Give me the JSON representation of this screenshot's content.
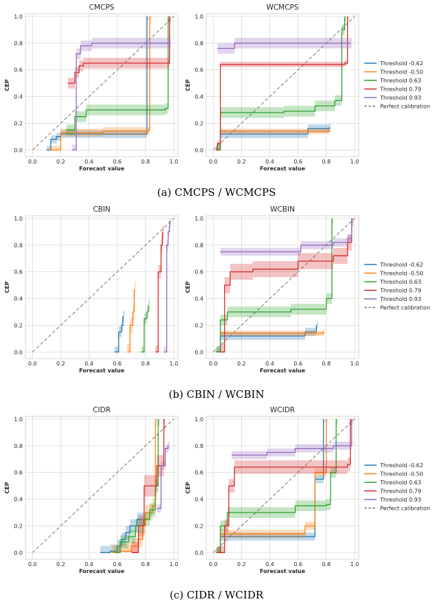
{
  "colors": {
    "Threshold -0.62": "#1f77b4",
    "Threshold -0.50": "#ff7f0e",
    "Threshold 0.63": "#2ca02c",
    "Threshold 0.79": "#d62728",
    "Threshold 0.93": "#9467bd",
    "perfect": "#7f7f7f",
    "grid": "#d9d9d9"
  },
  "legend": {
    "entries": [
      "Threshold -0.62",
      "Threshold -0.50",
      "Threshold 0.63",
      "Threshold 0.79",
      "Threshold 0.93",
      "Perfect calibration"
    ],
    "placement": "right"
  },
  "captions": [
    "(a) CMCPS / WCMCPS",
    "(b) CBIN / WCBIN",
    "(c) CIDR / WCIDR"
  ],
  "chart_data": [
    {
      "type": "line",
      "title": "CMCPS",
      "xlabel": "Forecast value",
      "ylabel": "CEP",
      "xlim": [
        -0.05,
        1.03
      ],
      "ylim": [
        -0.05,
        1.02
      ],
      "xticks": [
        "0.0",
        "0.2",
        "0.4",
        "0.6",
        "0.8",
        "1.0"
      ],
      "yticks": [
        "0.0",
        "0.2",
        "0.4",
        "0.6",
        "0.8",
        "1.0"
      ],
      "grid": true,
      "series": [
        {
          "name": "Threshold -0.62",
          "x": [
            0.1,
            0.13,
            0.17,
            0.2,
            0.81,
            0.81
          ],
          "y": [
            0.0,
            0.08,
            0.1,
            0.12,
            0.12,
            1.0
          ],
          "band": 0.03
        },
        {
          "name": "Threshold -0.50",
          "x": [
            0.12,
            0.2,
            0.5,
            0.82,
            0.83
          ],
          "y": [
            0.0,
            0.13,
            0.14,
            0.15,
            1.0
          ],
          "band": 0.03
        },
        {
          "name": "Threshold 0.63",
          "x": [
            0.24,
            0.3,
            0.38,
            0.6,
            0.94,
            0.96
          ],
          "y": [
            0.15,
            0.25,
            0.3,
            0.3,
            0.31,
            1.0
          ],
          "band": 0.04
        },
        {
          "name": "Threshold 0.79",
          "x": [
            0.25,
            0.3,
            0.33,
            0.36,
            0.97
          ],
          "y": [
            0.5,
            0.58,
            0.63,
            0.65,
            1.0
          ],
          "band": 0.04
        },
        {
          "name": "Threshold 0.93",
          "x": [
            0.28,
            0.31,
            0.34,
            0.42,
            0.97
          ],
          "y": [
            0.0,
            0.72,
            0.78,
            0.8,
            0.81
          ],
          "band": 0.04
        }
      ]
    },
    {
      "type": "line",
      "title": "WCMCPS",
      "xlabel": "Forecast value",
      "ylabel": "CEP",
      "xlim": [
        -0.05,
        1.03
      ],
      "ylim": [
        -0.05,
        1.02
      ],
      "xticks": [
        "0.0",
        "0.2",
        "0.4",
        "0.6",
        "0.8",
        "1.0"
      ],
      "yticks": [
        "0.0",
        "0.2",
        "0.4",
        "0.6",
        "0.8",
        "1.0"
      ],
      "grid": true,
      "series": [
        {
          "name": "Threshold -0.62",
          "x": [
            0.02,
            0.05,
            0.4,
            0.67,
            0.82
          ],
          "y": [
            0.0,
            0.12,
            0.12,
            0.16,
            0.17
          ],
          "band": 0.03
        },
        {
          "name": "Threshold -0.50",
          "x": [
            0.02,
            0.05,
            0.5,
            0.82
          ],
          "y": [
            0.0,
            0.14,
            0.14,
            0.15
          ],
          "band": 0.02
        },
        {
          "name": "Threshold 0.63",
          "x": [
            0.02,
            0.05,
            0.5,
            0.72,
            0.86,
            0.91,
            0.93
          ],
          "y": [
            0.0,
            0.28,
            0.29,
            0.33,
            0.37,
            0.9,
            1.0
          ],
          "band": 0.04
        },
        {
          "name": "Threshold 0.79",
          "x": [
            0.02,
            0.03,
            0.05,
            0.93,
            0.95
          ],
          "y": [
            0.0,
            0.05,
            0.64,
            0.65,
            1.0
          ],
          "band": 0.02
        },
        {
          "name": "Threshold 0.93",
          "x": [
            0.03,
            0.15,
            0.97
          ],
          "y": [
            0.76,
            0.8,
            0.8
          ],
          "band": 0.04
        }
      ]
    },
    {
      "type": "line",
      "title": "CBIN",
      "xlabel": "Forecast value",
      "ylabel": "CEP",
      "xlim": [
        -0.05,
        1.03
      ],
      "ylim": [
        -0.05,
        1.02
      ],
      "xticks": [
        "0.0",
        "0.2",
        "0.4",
        "0.6",
        "0.8",
        "1.0"
      ],
      "yticks": [
        "0.0",
        "0.2",
        "0.4",
        "0.6",
        "0.8",
        "1.0"
      ],
      "grid": true,
      "series": [
        {
          "name": "Threshold -0.62",
          "x": [
            0.58,
            0.61,
            0.63,
            0.64
          ],
          "y": [
            0.0,
            0.15,
            0.2,
            0.27
          ],
          "band": 0.04
        },
        {
          "name": "Threshold -0.50",
          "x": [
            0.67,
            0.69,
            0.71,
            0.72
          ],
          "y": [
            0.0,
            0.2,
            0.3,
            0.47
          ],
          "band": 0.06
        },
        {
          "name": "Threshold 0.63",
          "x": [
            0.77,
            0.79,
            0.81,
            0.82
          ],
          "y": [
            0.0,
            0.25,
            0.3,
            0.35
          ],
          "band": 0.04
        },
        {
          "name": "Threshold 0.79",
          "x": [
            0.87,
            0.89,
            0.91,
            0.92
          ],
          "y": [
            0.0,
            0.6,
            0.8,
            0.9
          ],
          "band": 0.05
        },
        {
          "name": "Threshold 0.93",
          "x": [
            0.93,
            0.95,
            0.96,
            0.97
          ],
          "y": [
            0.0,
            0.8,
            0.9,
            0.98
          ],
          "band": 0.04
        }
      ]
    },
    {
      "type": "line",
      "title": "WCBIN",
      "xlabel": "Forecast value",
      "ylabel": "CEP",
      "xlim": [
        -0.05,
        1.03
      ],
      "ylim": [
        -0.05,
        1.02
      ],
      "xticks": [
        "0.0",
        "0.2",
        "0.4",
        "0.6",
        "0.8",
        "1.0"
      ],
      "yticks": [
        "0.0",
        "0.2",
        "0.4",
        "0.6",
        "0.8",
        "1.0"
      ],
      "grid": true,
      "series": [
        {
          "name": "Threshold -0.62",
          "x": [
            0.02,
            0.05,
            0.65,
            0.73
          ],
          "y": [
            0.0,
            0.12,
            0.15,
            0.2
          ],
          "band": 0.03
        },
        {
          "name": "Threshold -0.50",
          "x": [
            0.02,
            0.05,
            0.6,
            0.78
          ],
          "y": [
            0.0,
            0.14,
            0.14,
            0.15
          ],
          "band": 0.02
        },
        {
          "name": "Threshold 0.63",
          "x": [
            0.02,
            0.05,
            0.1,
            0.55,
            0.8,
            0.84
          ],
          "y": [
            0.0,
            0.24,
            0.3,
            0.32,
            0.4,
            1.0
          ],
          "band": 0.04
        },
        {
          "name": "Threshold 0.79",
          "x": [
            0.05,
            0.08,
            0.12,
            0.28,
            0.6,
            0.85,
            0.95,
            0.98
          ],
          "y": [
            0.0,
            0.5,
            0.6,
            0.62,
            0.68,
            0.72,
            0.82,
            1.0
          ],
          "band": 0.06
        },
        {
          "name": "Threshold 0.93",
          "x": [
            0.05,
            0.45,
            0.62,
            0.85,
            0.95,
            0.98
          ],
          "y": [
            0.75,
            0.75,
            0.8,
            0.82,
            0.85,
            1.0
          ],
          "band": 0.03
        }
      ]
    },
    {
      "type": "line",
      "title": "CIDR",
      "xlabel": "Forecast value",
      "ylabel": "CEP",
      "xlim": [
        -0.05,
        1.03
      ],
      "ylim": [
        -0.05,
        1.02
      ],
      "xticks": [
        "0.0",
        "0.2",
        "0.4",
        "0.6",
        "0.8",
        "1.0"
      ],
      "yticks": [
        "0.0",
        "0.2",
        "0.4",
        "0.6",
        "0.8",
        "1.0"
      ],
      "grid": true,
      "series": [
        {
          "name": "Threshold -0.62",
          "x": [
            0.48,
            0.55,
            0.6,
            0.63,
            0.66,
            0.69,
            0.74,
            0.78
          ],
          "y": [
            0.0,
            0.01,
            0.05,
            0.1,
            0.15,
            0.2,
            0.25,
            0.25
          ],
          "band": 0.05
        },
        {
          "name": "Threshold -0.50",
          "x": [
            0.56,
            0.62,
            0.7,
            0.75,
            0.78,
            0.8,
            0.85,
            0.87
          ],
          "y": [
            0.0,
            0.01,
            0.05,
            0.1,
            0.2,
            0.3,
            0.35,
            1.0
          ],
          "band": 0.06
        },
        {
          "name": "Threshold 0.63",
          "x": [
            0.58,
            0.62,
            0.68,
            0.73,
            0.79,
            0.83,
            0.87,
            0.89
          ],
          "y": [
            0.0,
            0.08,
            0.12,
            0.2,
            0.25,
            0.32,
            0.5,
            1.0
          ],
          "band": 0.05
        },
        {
          "name": "Threshold 0.79",
          "x": [
            0.7,
            0.75,
            0.79,
            0.85,
            0.88,
            0.92,
            0.93
          ],
          "y": [
            0.0,
            0.2,
            0.5,
            0.5,
            0.65,
            0.65,
            1.0
          ],
          "band": 0.08
        },
        {
          "name": "Threshold 0.93",
          "x": [
            0.88,
            0.91,
            0.94,
            0.96
          ],
          "y": [
            0.33,
            0.65,
            0.78,
            0.8
          ],
          "band": 0.03
        }
      ]
    },
    {
      "type": "line",
      "title": "WCIDR",
      "xlabel": "Forecast value",
      "ylabel": "CEP",
      "xlim": [
        -0.05,
        1.03
      ],
      "ylim": [
        -0.05,
        1.02
      ],
      "xticks": [
        "0.0",
        "0.2",
        "0.4",
        "0.6",
        "0.8",
        "1.0"
      ],
      "yticks": [
        "0.0",
        "0.2",
        "0.4",
        "0.6",
        "0.8",
        "1.0"
      ],
      "grid": true,
      "series": [
        {
          "name": "Threshold -0.62",
          "x": [
            0.02,
            0.05,
            0.65,
            0.72,
            0.78
          ],
          "y": [
            0.0,
            0.12,
            0.12,
            0.55,
            1.0
          ],
          "band": 0.03
        },
        {
          "name": "Threshold -0.50",
          "x": [
            0.02,
            0.05,
            0.6,
            0.65,
            0.72,
            0.8
          ],
          "y": [
            0.0,
            0.14,
            0.14,
            0.2,
            0.6,
            1.0
          ],
          "band": 0.03
        },
        {
          "name": "Threshold 0.63",
          "x": [
            0.02,
            0.05,
            0.1,
            0.3,
            0.58,
            0.8,
            0.83,
            0.87
          ],
          "y": [
            0.0,
            0.2,
            0.3,
            0.3,
            0.35,
            0.36,
            0.6,
            1.0
          ],
          "band": 0.04
        },
        {
          "name": "Threshold 0.79",
          "x": [
            0.03,
            0.08,
            0.11,
            0.15,
            0.95,
            0.97
          ],
          "y": [
            0.0,
            0.2,
            0.5,
            0.64,
            0.66,
            1.0
          ],
          "band": 0.05
        },
        {
          "name": "Threshold 0.93",
          "x": [
            0.13,
            0.38,
            0.58,
            0.85,
            0.95,
            0.98
          ],
          "y": [
            0.73,
            0.75,
            0.78,
            0.8,
            0.8,
            1.0
          ],
          "band": 0.03
        }
      ]
    }
  ]
}
